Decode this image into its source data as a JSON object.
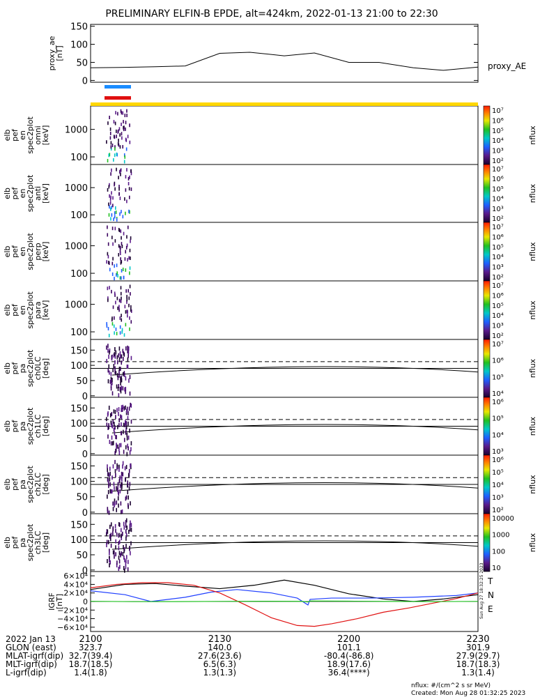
{
  "title": "PRELIMINARY ELFIN-B EPDE, alt=424km, 2022-01-13 21:00 to 22:30",
  "footer": {
    "units": "nflux: #/(cm^2 s sr MeV)",
    "created": "Created: Mon Aug 28 01:32:25 2023",
    "side_stamp": "Sun Aug 27 18:32:25 2023"
  },
  "colors": {
    "bar_blue": "#1a8cff",
    "bar_red": "#e01010",
    "bar_yellow": "#ffd700",
    "grf_black": "#000000",
    "grf_blue": "#1f3fff",
    "grf_red": "#e01010",
    "grf_green": "#20c020"
  },
  "time_axis": {
    "ticks": [
      "2100",
      "2130",
      "2200",
      "2230"
    ],
    "row_labels": [
      "2022 Jan 13",
      "GLON (east)",
      "MLAT-igrf(dip)",
      "MLT-igrf(dip)",
      "L-igrf(dip)"
    ],
    "row_values": [
      [
        "",
        "",
        "",
        ""
      ],
      [
        "323.7",
        "140.0",
        "101.1",
        "301.9"
      ],
      [
        "32.7(39.4)",
        "27.6(23.6)",
        "-80.4(-86.8)",
        "27.9(29.7)"
      ],
      [
        "18.7(18.5)",
        "6.5(6.3)",
        "18.9(17.6)",
        "18.7(18.3)"
      ],
      [
        "1.4(1.8)",
        "1.3(1.3)",
        "36.4(****)",
        "1.3(1.4)"
      ]
    ]
  },
  "colorbar_label": "nflux",
  "chart_data": [
    {
      "type": "line",
      "panel": "proxy_ae",
      "ylabel": [
        "proxy_ae",
        "[nT]"
      ],
      "series_label": "proxy_AE",
      "ylim": [
        -5,
        155
      ],
      "yticks": [
        "0",
        "50",
        "100",
        "150"
      ],
      "ytick_values": [
        0,
        50,
        100,
        150
      ],
      "x_minutes": [
        0,
        7,
        15,
        22,
        30,
        37,
        45,
        52,
        60,
        67,
        75,
        82,
        90
      ],
      "values": [
        35,
        36,
        38,
        40,
        75,
        78,
        68,
        76,
        50,
        50,
        35,
        28,
        37
      ]
    },
    {
      "type": "heatmap",
      "panel": "en_omni",
      "ylabel": [
        "elb",
        "pef",
        "en",
        "spec2plot",
        "omni",
        "[keV]"
      ],
      "yticks": [
        "100",
        "1000"
      ],
      "cbar_ticks": [
        "10⁷",
        "10⁶",
        "10⁵",
        "10⁴",
        "10³",
        "10²"
      ]
    },
    {
      "type": "heatmap",
      "panel": "en_anti",
      "ylabel": [
        "elb",
        "pef",
        "en",
        "spec2plot",
        "anti",
        "[keV]"
      ],
      "yticks": [
        "100",
        "1000"
      ],
      "cbar_ticks": [
        "10⁷",
        "10⁶",
        "10⁵",
        "10⁴",
        "10³",
        "10²"
      ]
    },
    {
      "type": "heatmap",
      "panel": "en_perp",
      "ylabel": [
        "elb",
        "pef",
        "en",
        "spec2plot",
        "perp",
        "[keV]"
      ],
      "yticks": [
        "100",
        "1000"
      ],
      "cbar_ticks": [
        "10⁷",
        "10⁶",
        "10⁵",
        "10⁴",
        "10³",
        "10²"
      ]
    },
    {
      "type": "heatmap",
      "panel": "en_para",
      "ylabel": [
        "elb",
        "pef",
        "en",
        "spec2plot",
        "para",
        "[keV]"
      ],
      "yticks": [
        "100",
        "1000"
      ],
      "cbar_ticks": [
        "10⁷",
        "10⁶",
        "10⁵",
        "10⁴",
        "10³",
        "10²"
      ]
    },
    {
      "type": "heatmap",
      "panel": "ch0LC",
      "ylabel": [
        "elb",
        "pef",
        "pa",
        "spec2plot",
        "ch0LC",
        "[deg]"
      ],
      "yticks": [
        "0",
        "50",
        "100",
        "150"
      ],
      "cbar_ticks": [
        "10⁷",
        "10⁶",
        "10⁵",
        "10⁴"
      ]
    },
    {
      "type": "heatmap",
      "panel": "ch1LC",
      "ylabel": [
        "elb",
        "pef",
        "pa",
        "spec2plot",
        "ch1LC",
        "[deg]"
      ],
      "yticks": [
        "0",
        "50",
        "100",
        "150"
      ],
      "cbar_ticks": [
        "10⁶",
        "10⁵",
        "10⁴",
        "10³"
      ]
    },
    {
      "type": "heatmap",
      "panel": "ch2LC",
      "ylabel": [
        "elb",
        "pef",
        "pa",
        "spec2plot",
        "ch2LC",
        "[deg]"
      ],
      "yticks": [
        "0",
        "50",
        "100",
        "150"
      ],
      "cbar_ticks": [
        "10⁶",
        "10⁵",
        "10⁴",
        "10³",
        "10²"
      ]
    },
    {
      "type": "heatmap",
      "panel": "ch3LC",
      "ylabel": [
        "elb",
        "pef",
        "pa",
        "spec2plot",
        "ch3LC",
        "[deg]"
      ],
      "yticks": [
        "0",
        "50",
        "100",
        "150"
      ],
      "cbar_ticks": [
        "10000",
        "1000",
        "100",
        "10"
      ]
    },
    {
      "type": "line",
      "panel": "IGRF",
      "ylabel": [
        "IGRF",
        "[nT]"
      ],
      "ylim": [
        -70000,
        70000
      ],
      "yticks": [
        "6×10⁴",
        "4×10⁴",
        "2×10⁴",
        "0",
        "−2×10⁴",
        "−4×10⁴",
        "−6×10⁴"
      ],
      "ytick_values": [
        60000,
        40000,
        20000,
        0,
        -20000,
        -40000,
        -60000
      ],
      "legend": [
        "T",
        "N",
        "E"
      ],
      "series": [
        {
          "name": "T",
          "color": "#000000",
          "x_minutes": [
            0,
            8,
            15,
            22,
            30,
            38,
            45,
            52,
            60,
            68,
            75,
            82,
            90
          ],
          "values": [
            28000,
            40000,
            42000,
            36000,
            30000,
            38000,
            50000,
            38000,
            18000,
            6000,
            0,
            6000,
            16000
          ]
        },
        {
          "name": "N",
          "color": "#1f3fff",
          "x_minutes": [
            0,
            8,
            14,
            22,
            28,
            34,
            42,
            48,
            50.5,
            51,
            56,
            65,
            75,
            85,
            90
          ],
          "values": [
            25000,
            16000,
            0,
            10000,
            22000,
            28000,
            20000,
            8000,
            -8000,
            5000,
            8000,
            8000,
            10000,
            14000,
            20000
          ]
        },
        {
          "name": "E",
          "color": "#e01010",
          "x_minutes": [
            0,
            6,
            12,
            18,
            24,
            30,
            36,
            42,
            48,
            52,
            56,
            62,
            68,
            74,
            80,
            85,
            90
          ],
          "values": [
            32000,
            40000,
            44000,
            44000,
            38000,
            20000,
            -8000,
            -38000,
            -56000,
            -58000,
            -52000,
            -40000,
            -25000,
            -15000,
            -3000,
            7000,
            20000
          ]
        },
        {
          "name": "",
          "color": "#20c020",
          "x_minutes": [
            0,
            10,
            20,
            30,
            40,
            49,
            50.5,
            51,
            60,
            70,
            80,
            90
          ],
          "values": [
            500,
            -300,
            -200,
            300,
            600,
            400,
            -1000,
            1200,
            800,
            200,
            -200,
            300
          ]
        }
      ]
    }
  ]
}
